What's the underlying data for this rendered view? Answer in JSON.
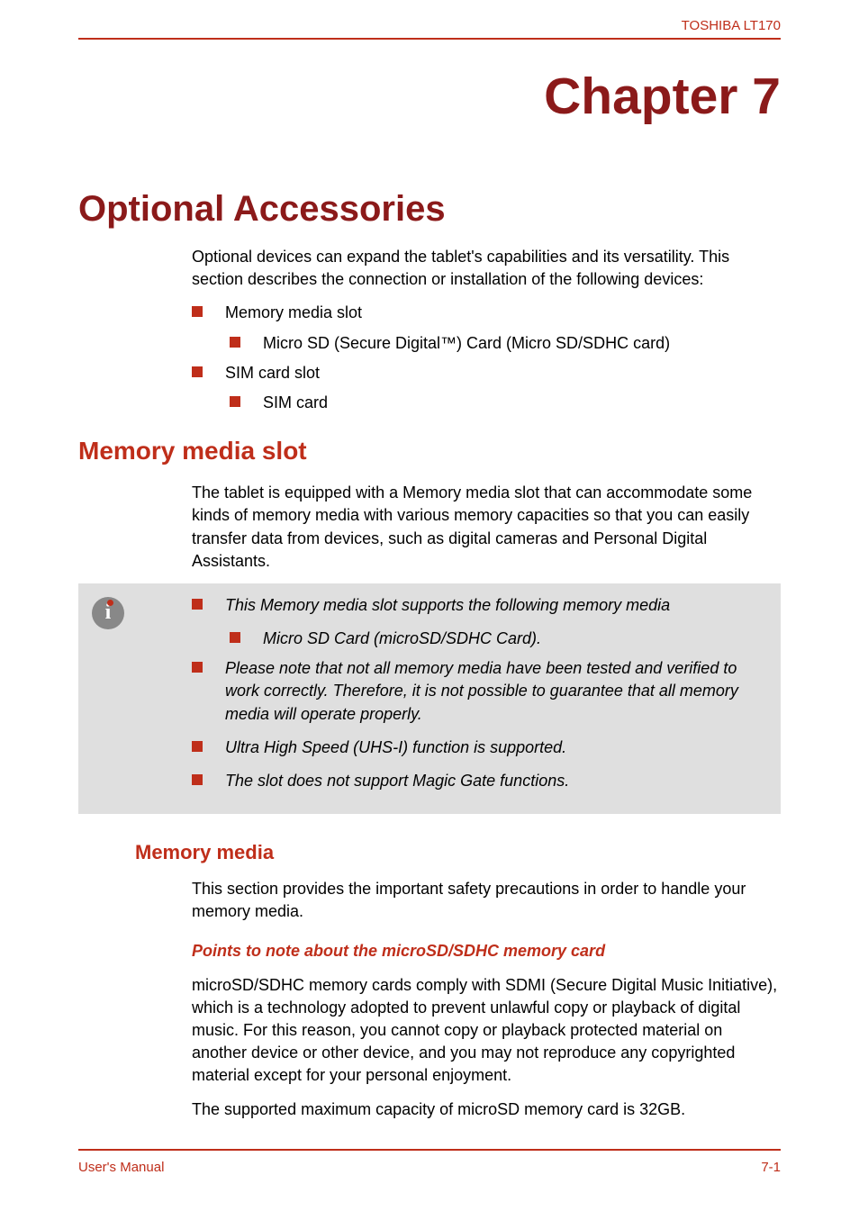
{
  "header": {
    "product": "TOSHIBA LT170"
  },
  "chapter": {
    "label": "Chapter 7"
  },
  "title": "Optional Accessories",
  "intro": "Optional devices can expand the tablet's capabilities and its versatility. This section describes the connection or installation of the following devices:",
  "overview_list": {
    "item1": "Memory media slot",
    "item1_sub": "Micro SD (Secure Digital™) Card (Micro SD/SDHC card)",
    "item2": "SIM card slot",
    "item2_sub": "SIM card"
  },
  "section1": {
    "heading": "Memory media slot",
    "body": "The tablet is equipped with a Memory media slot that can accommodate some kinds of memory media with various memory capacities so that you can easily transfer data from devices, such as digital cameras and Personal Digital Assistants."
  },
  "info_box": {
    "item1": "This Memory media slot supports the following memory media",
    "item1_sub": "Micro SD Card (microSD/SDHC Card).",
    "item2": "Please note that not all memory media have been tested and verified to work correctly. Therefore, it is not possible to guarantee that all memory media will operate properly.",
    "item3": "Ultra High Speed (UHS-I) function is supported.",
    "item4": "The slot does not support Magic Gate functions."
  },
  "section2": {
    "heading": "Memory media",
    "body": "This section provides the important safety precautions in order to handle your memory media."
  },
  "section3": {
    "heading": "Points to note about the microSD/SDHC memory card",
    "body1": "microSD/SDHC memory cards comply with SDMI (Secure Digital Music Initiative), which is a technology adopted to prevent unlawful copy or playback of digital music. For this reason, you cannot copy or playback protected material on another device or other device, and you may not reproduce any copyrighted material except for your personal enjoyment.",
    "body2": "The supported maximum capacity of microSD memory card is 32GB."
  },
  "footer": {
    "left": "User's Manual",
    "right": "7-1"
  },
  "colors": {
    "accent": "#bf2e1a",
    "dark_accent": "#8b1a1a",
    "box_bg": "#dfdfdf",
    "icon_bg": "#888888",
    "text": "#000000",
    "page_bg": "#ffffff"
  }
}
